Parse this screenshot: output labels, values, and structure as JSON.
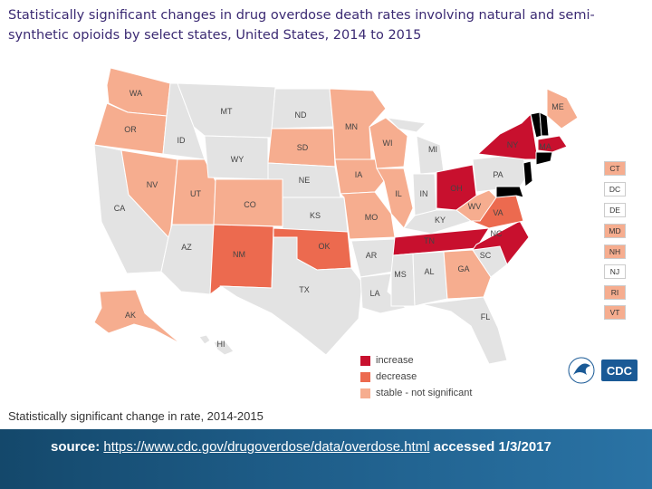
{
  "title": "Statistically significant changes in drug overdose death rates involving natural and semi-synthetic opioids by select states, United States, 2014 to 2015",
  "colors": {
    "increase": "#c8102e",
    "decrease": "#ec6a4f",
    "stable": "#f6ad8f",
    "no_data": "#e3e3e3"
  },
  "legend": {
    "increase": "increase",
    "decrease": "decrease",
    "stable": "stable - not significant"
  },
  "states": {
    "WA": {
      "label": "WA",
      "status": "stable"
    },
    "OR": {
      "label": "OR",
      "status": "stable"
    },
    "CA": {
      "label": "CA",
      "status": "no_data"
    },
    "ID": {
      "label": "ID",
      "status": "no_data"
    },
    "NV": {
      "label": "NV",
      "status": "stable"
    },
    "UT": {
      "label": "UT",
      "status": "stable"
    },
    "AZ": {
      "label": "AZ",
      "status": "no_data"
    },
    "MT": {
      "label": "MT",
      "status": "no_data"
    },
    "WY": {
      "label": "WY",
      "status": "no_data"
    },
    "CO": {
      "label": "CO",
      "status": "stable"
    },
    "NM": {
      "label": "NM",
      "status": "decrease"
    },
    "ND": {
      "label": "ND",
      "status": "no_data"
    },
    "SD": {
      "label": "SD",
      "status": "stable"
    },
    "NE": {
      "label": "NE",
      "status": "no_data"
    },
    "KS": {
      "label": "KS",
      "status": "no_data"
    },
    "OK": {
      "label": "OK",
      "status": "decrease"
    },
    "TX": {
      "label": "TX",
      "status": "no_data"
    },
    "MN": {
      "label": "MN",
      "status": "stable"
    },
    "IA": {
      "label": "IA",
      "status": "stable"
    },
    "MO": {
      "label": "MO",
      "status": "stable"
    },
    "AR": {
      "label": "AR",
      "status": "no_data"
    },
    "LA": {
      "label": "LA",
      "status": "no_data"
    },
    "WI": {
      "label": "WI",
      "status": "stable"
    },
    "IL": {
      "label": "IL",
      "status": "stable"
    },
    "MI": {
      "label": "MI",
      "status": "no_data"
    },
    "IN": {
      "label": "IN",
      "status": "no_data"
    },
    "OH": {
      "label": "OH",
      "status": "increase"
    },
    "KY": {
      "label": "KY",
      "status": "no_data"
    },
    "TN": {
      "label": "TN",
      "status": "increase"
    },
    "MS": {
      "label": "MS",
      "status": "no_data"
    },
    "AL": {
      "label": "AL",
      "status": "no_data"
    },
    "GA": {
      "label": "GA",
      "status": "stable"
    },
    "FL": {
      "label": "FL",
      "status": "no_data"
    },
    "SC": {
      "label": "SC",
      "status": "no_data"
    },
    "NC": {
      "label": "NC",
      "status": "increase"
    },
    "VA": {
      "label": "VA",
      "status": "decrease"
    },
    "WV": {
      "label": "WV",
      "status": "stable"
    },
    "PA": {
      "label": "PA",
      "status": "no_data"
    },
    "NY": {
      "label": "NY",
      "status": "increase"
    },
    "ME": {
      "label": "ME",
      "status": "stable"
    },
    "MA": {
      "label": "MA",
      "status": "increase"
    },
    "AK": {
      "label": "AK",
      "status": "stable"
    },
    "HI": {
      "label": "HI",
      "status": "no_data"
    }
  },
  "small_states": [
    {
      "label": "CT",
      "status": "stable"
    },
    {
      "label": "DC",
      "status": "no_data"
    },
    {
      "label": "DE",
      "status": "no_data"
    },
    {
      "label": "MD",
      "status": "stable"
    },
    {
      "label": "NH",
      "status": "stable"
    },
    {
      "label": "NJ",
      "status": "no_data"
    },
    {
      "label": "RI",
      "status": "stable"
    },
    {
      "label": "VT",
      "status": "stable"
    }
  ],
  "caption": "Statistically significant change in rate, 2014-2015",
  "logo_text": "CDC",
  "source": {
    "prefix": "source: ",
    "url": "https://www.cdc.gov/drugoverdose/data/overdose.html",
    "suffix": " accessed 1/3/2017"
  }
}
